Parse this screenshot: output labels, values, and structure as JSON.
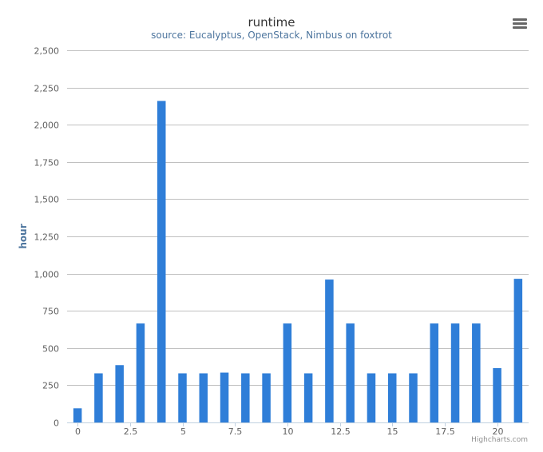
{
  "chart_data": {
    "type": "bar",
    "title": "runtime",
    "subtitle": "source: Eucalyptus, OpenStack, Nimbus on foxtrot",
    "xlabel": "",
    "ylabel": "hour",
    "x": [
      0,
      1,
      2,
      3,
      4,
      5,
      6,
      7,
      8,
      9,
      10,
      11,
      12,
      13,
      14,
      15,
      16,
      17,
      18,
      19,
      20,
      21
    ],
    "values": [
      95,
      330,
      385,
      665,
      2160,
      330,
      330,
      335,
      330,
      330,
      665,
      330,
      960,
      665,
      330,
      330,
      330,
      665,
      665,
      665,
      365,
      965
    ],
    "xlim": [
      -0.5,
      21.5
    ],
    "ylim": [
      0,
      2500
    ],
    "x_ticks": [
      0,
      2.5,
      5,
      7.5,
      10,
      12.5,
      15,
      17.5,
      20
    ],
    "x_tick_labels": [
      "0",
      "2.5",
      "5",
      "7.5",
      "10",
      "12.5",
      "15",
      "17.5",
      "20"
    ],
    "y_ticks": [
      0,
      250,
      500,
      750,
      1000,
      1250,
      1500,
      1750,
      2000,
      2250,
      2500
    ],
    "y_tick_labels": [
      "0",
      "250",
      "500",
      "750",
      "1,000",
      "1,250",
      "1,500",
      "1,750",
      "2,000",
      "2,250",
      "2,500"
    ],
    "grid": true,
    "colors": {
      "bar": "#2f7ed8",
      "grid": "#c0c0c0",
      "axis_line": "#c0d0e0"
    }
  },
  "credits": "Highcharts.com",
  "menu_icon": "hamburger-menu-icon"
}
